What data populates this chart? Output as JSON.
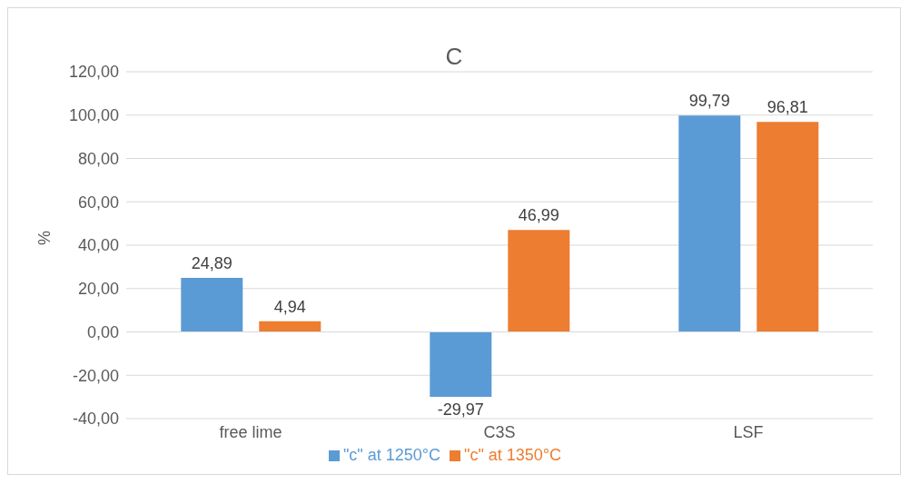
{
  "chart_data": {
    "type": "bar",
    "title": "C",
    "ylabel": "%",
    "categories": [
      "free lime",
      "C3S",
      "LSF"
    ],
    "series": [
      {
        "name": "\"c\" at 1250°C",
        "color": "#5b9bd5",
        "values": [
          24.89,
          -29.97,
          99.79
        ],
        "value_labels": [
          "24,89",
          "-29,97",
          "99,79"
        ]
      },
      {
        "name": "\"c\" at 1350°C",
        "color": "#ed7d31",
        "values": [
          4.94,
          46.99,
          96.81
        ],
        "value_labels": [
          "4,94",
          "46,99",
          "96,81"
        ]
      }
    ],
    "ylim": [
      -40,
      120
    ],
    "yticks": [
      {
        "value": -40,
        "label": "-40,00"
      },
      {
        "value": -20,
        "label": "-20,00"
      },
      {
        "value": 0,
        "label": "0,00"
      },
      {
        "value": 20,
        "label": "20,00"
      },
      {
        "value": 40,
        "label": "40,00"
      },
      {
        "value": 60,
        "label": "60,00"
      },
      {
        "value": 80,
        "label": "80,00"
      },
      {
        "value": 100,
        "label": "100,00"
      },
      {
        "value": 120,
        "label": "120,00"
      }
    ],
    "grid": "y",
    "legend": "bottom"
  }
}
